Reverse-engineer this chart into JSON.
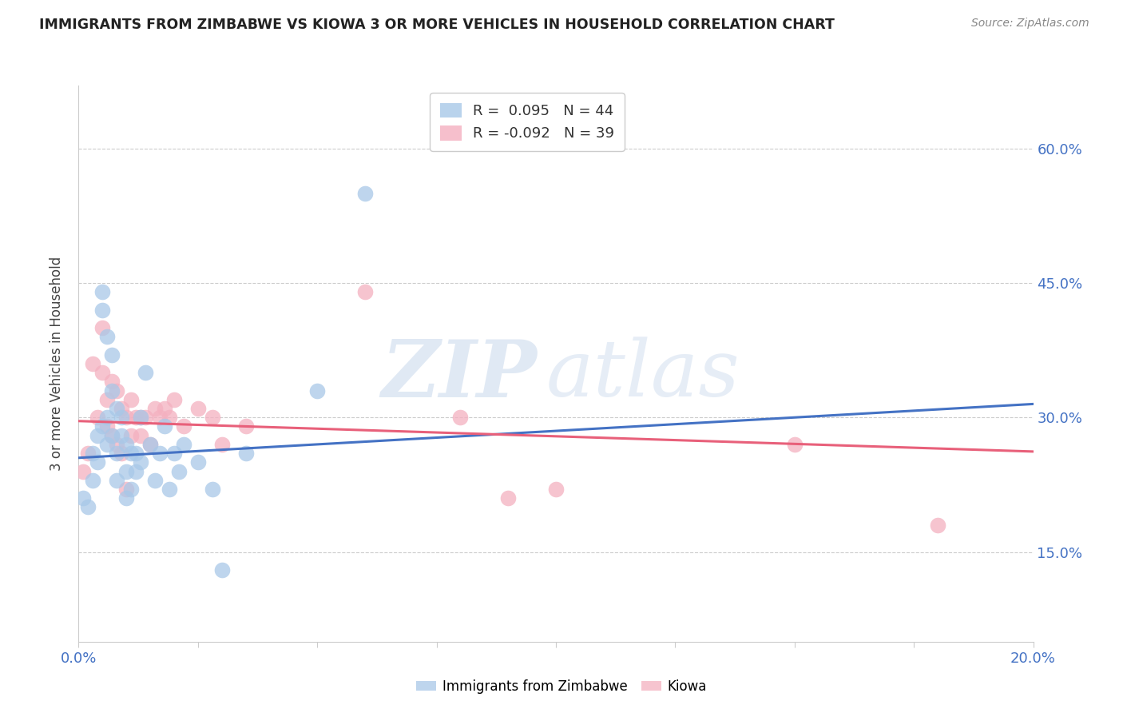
{
  "title": "IMMIGRANTS FROM ZIMBABWE VS KIOWA 3 OR MORE VEHICLES IN HOUSEHOLD CORRELATION CHART",
  "source": "Source: ZipAtlas.com",
  "ylabel": "3 or more Vehicles in Household",
  "ytick_labels": [
    "15.0%",
    "30.0%",
    "45.0%",
    "60.0%"
  ],
  "ytick_values": [
    0.15,
    0.3,
    0.45,
    0.6
  ],
  "xlim": [
    0.0,
    0.2
  ],
  "ylim": [
    0.05,
    0.67
  ],
  "legend_blue_r": "0.095",
  "legend_blue_n": "44",
  "legend_pink_r": "-0.092",
  "legend_pink_n": "39",
  "blue_color": "#a8c8e8",
  "pink_color": "#f4b0c0",
  "line_blue": "#4472c4",
  "line_pink": "#e8607a",
  "blue_scatter_x": [
    0.001,
    0.002,
    0.003,
    0.003,
    0.004,
    0.004,
    0.005,
    0.005,
    0.005,
    0.006,
    0.006,
    0.006,
    0.007,
    0.007,
    0.007,
    0.008,
    0.008,
    0.008,
    0.009,
    0.009,
    0.01,
    0.01,
    0.01,
    0.011,
    0.011,
    0.012,
    0.012,
    0.013,
    0.013,
    0.014,
    0.015,
    0.016,
    0.017,
    0.018,
    0.019,
    0.02,
    0.021,
    0.022,
    0.025,
    0.028,
    0.03,
    0.035,
    0.05,
    0.06
  ],
  "blue_scatter_y": [
    0.21,
    0.2,
    0.23,
    0.26,
    0.28,
    0.25,
    0.42,
    0.44,
    0.29,
    0.39,
    0.3,
    0.27,
    0.37,
    0.33,
    0.28,
    0.31,
    0.26,
    0.23,
    0.3,
    0.28,
    0.27,
    0.24,
    0.21,
    0.26,
    0.22,
    0.26,
    0.24,
    0.3,
    0.25,
    0.35,
    0.27,
    0.23,
    0.26,
    0.29,
    0.22,
    0.26,
    0.24,
    0.27,
    0.25,
    0.22,
    0.13,
    0.26,
    0.33,
    0.55
  ],
  "pink_scatter_x": [
    0.001,
    0.002,
    0.003,
    0.004,
    0.005,
    0.005,
    0.006,
    0.006,
    0.007,
    0.007,
    0.008,
    0.008,
    0.009,
    0.009,
    0.01,
    0.01,
    0.011,
    0.011,
    0.012,
    0.013,
    0.013,
    0.014,
    0.015,
    0.016,
    0.017,
    0.018,
    0.019,
    0.02,
    0.022,
    0.025,
    0.028,
    0.03,
    0.035,
    0.06,
    0.08,
    0.09,
    0.1,
    0.15,
    0.18
  ],
  "pink_scatter_y": [
    0.24,
    0.26,
    0.36,
    0.3,
    0.4,
    0.35,
    0.29,
    0.32,
    0.34,
    0.28,
    0.33,
    0.27,
    0.31,
    0.26,
    0.3,
    0.22,
    0.28,
    0.32,
    0.3,
    0.3,
    0.28,
    0.3,
    0.27,
    0.31,
    0.3,
    0.31,
    0.3,
    0.32,
    0.29,
    0.31,
    0.3,
    0.27,
    0.29,
    0.44,
    0.3,
    0.21,
    0.22,
    0.27,
    0.18
  ],
  "blue_line_x": [
    0.0,
    0.2
  ],
  "blue_line_y": [
    0.255,
    0.315
  ],
  "pink_line_x": [
    0.0,
    0.2
  ],
  "pink_line_y": [
    0.296,
    0.262
  ]
}
